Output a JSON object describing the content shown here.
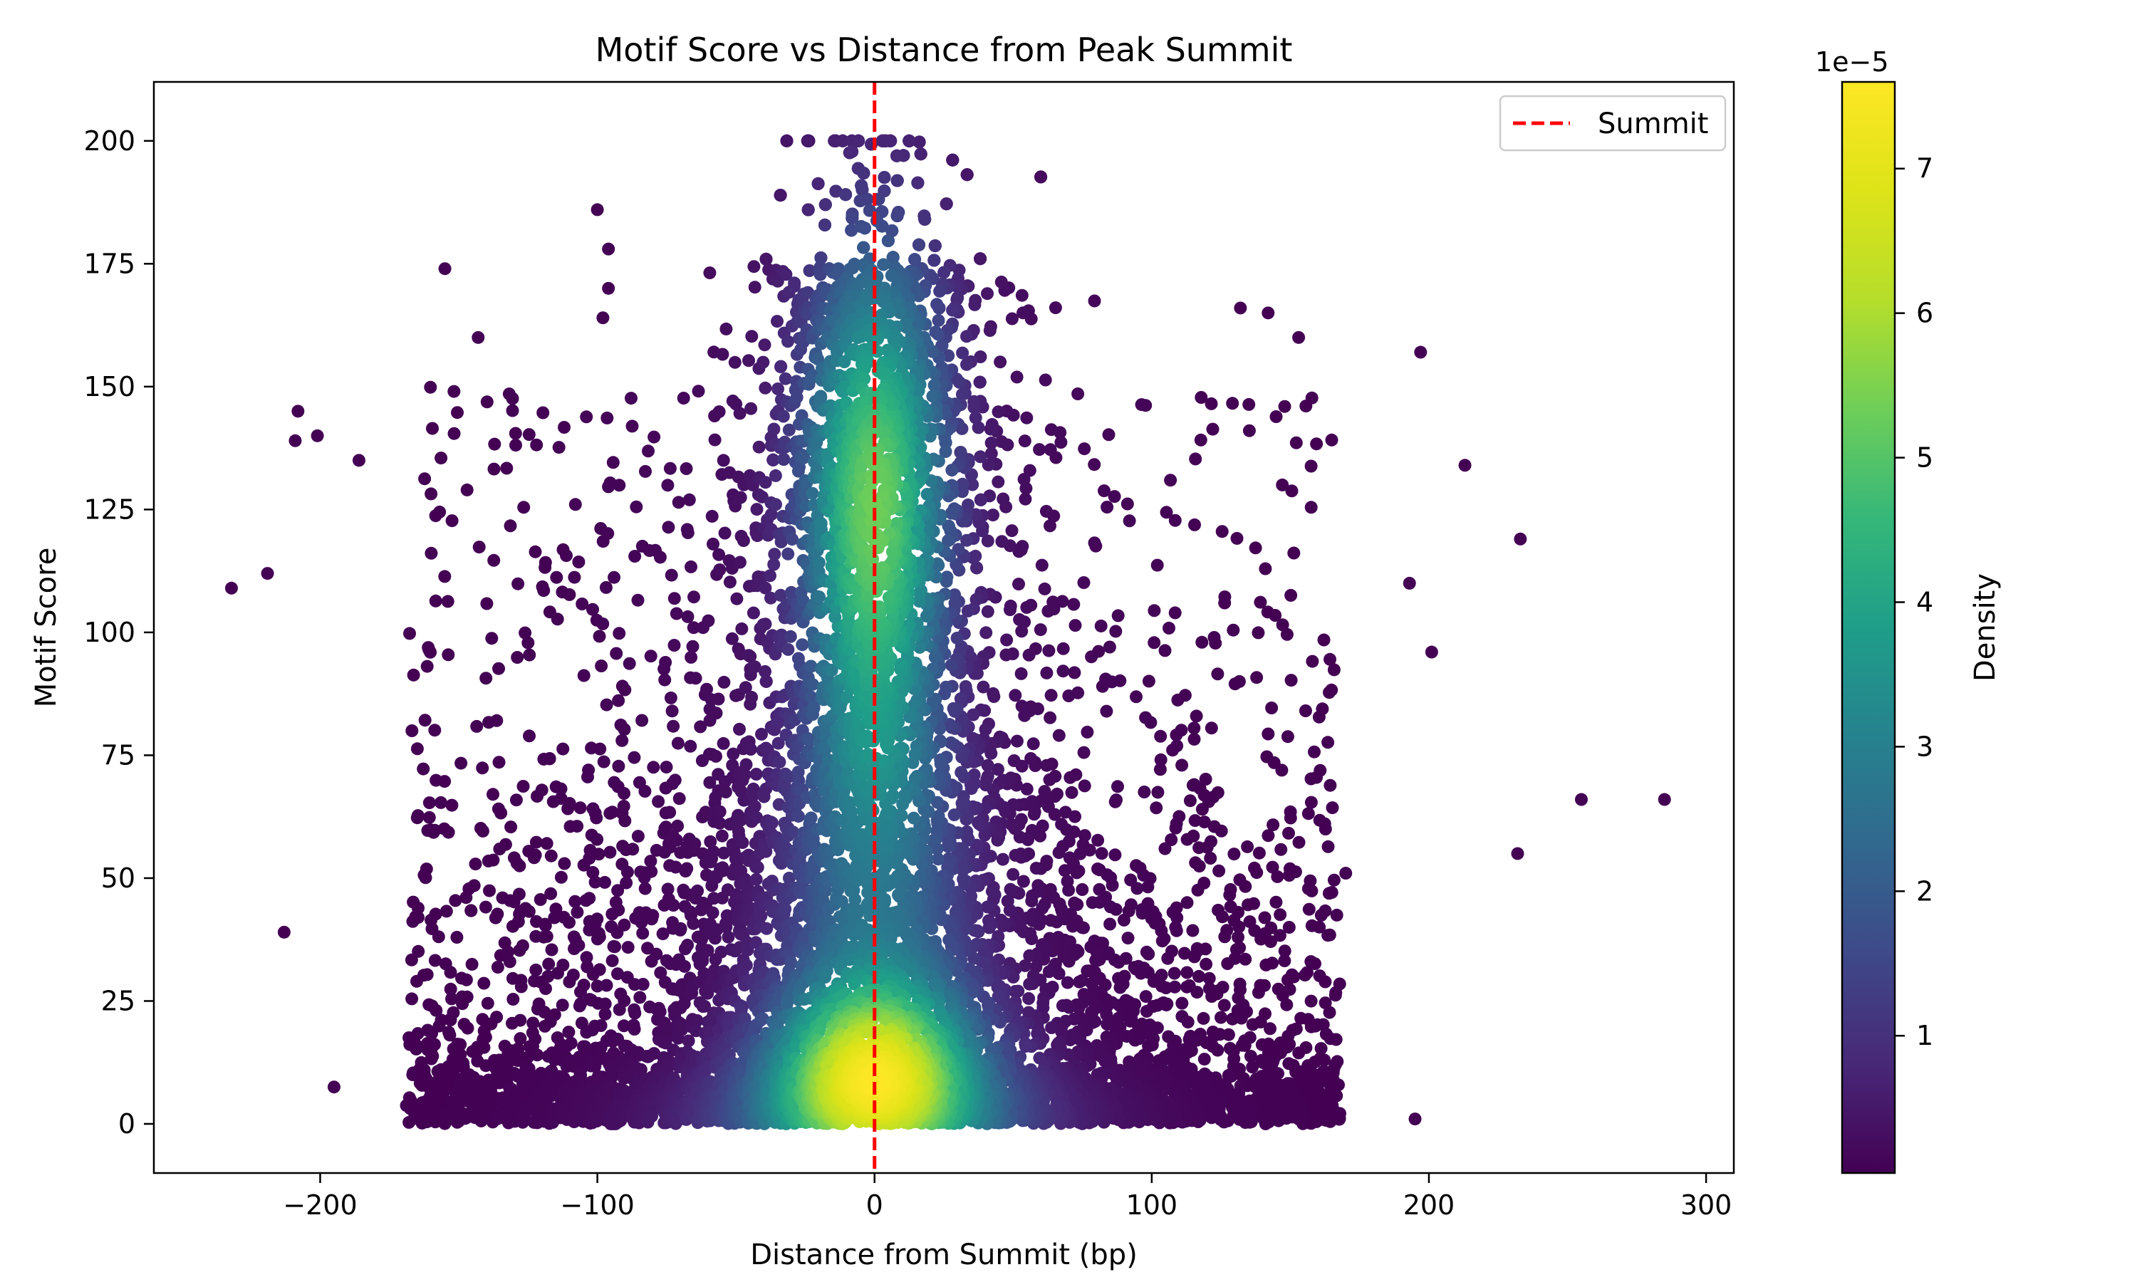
{
  "chart_data": {
    "type": "scatter",
    "title": "Motif Score vs Distance from Peak Summit",
    "xlabel": "Distance from Summit (bp)",
    "ylabel": "Motif Score",
    "xlim": [
      -260,
      310
    ],
    "ylim": [
      -10,
      212
    ],
    "xticks": [
      -200,
      -100,
      0,
      100,
      200,
      300
    ],
    "xtick_labels": [
      "−200",
      "−100",
      "0",
      "100",
      "200",
      "300"
    ],
    "yticks": [
      0,
      25,
      50,
      75,
      100,
      125,
      150,
      175,
      200
    ],
    "ytick_labels": [
      "0",
      "25",
      "50",
      "75",
      "100",
      "125",
      "150",
      "175",
      "200"
    ],
    "grid": false,
    "colormap": "viridis",
    "colorbar": {
      "label": "Density",
      "multiplier_label": "1e−5",
      "range": [
        0.05,
        7.6
      ],
      "ticks": [
        1,
        2,
        3,
        4,
        5,
        6,
        7
      ],
      "tick_labels": [
        "1",
        "2",
        "3",
        "4",
        "5",
        "6",
        "7"
      ]
    },
    "reference_line": {
      "x": 0,
      "label": "Summit",
      "color": "#ff0000",
      "style": "dashed"
    },
    "legend": {
      "placement": "top-right",
      "entries": [
        "Summit"
      ]
    },
    "distribution": {
      "description_core": "dense core centered at x≈0, strongest density near y≈130 and y≈10",
      "x_extent": [
        -168,
        168
      ],
      "y_extent": [
        0,
        200
      ]
    },
    "outliers": [
      {
        "x": -232,
        "y": 109
      },
      {
        "x": -219,
        "y": 112
      },
      {
        "x": -213,
        "y": 39
      },
      {
        "x": -208,
        "y": 145
      },
      {
        "x": -209,
        "y": 139
      },
      {
        "x": -201,
        "y": 140
      },
      {
        "x": -195,
        "y": 7.5
      },
      {
        "x": -186,
        "y": 135
      },
      {
        "x": -155,
        "y": 174
      },
      {
        "x": -143,
        "y": 160
      },
      {
        "x": -100,
        "y": 186
      },
      {
        "x": -96,
        "y": 178
      },
      {
        "x": -96,
        "y": 170
      },
      {
        "x": -98,
        "y": 164
      },
      {
        "x": 193,
        "y": 110
      },
      {
        "x": 195,
        "y": 1
      },
      {
        "x": 197,
        "y": 157
      },
      {
        "x": 201,
        "y": 96
      },
      {
        "x": 213,
        "y": 134
      },
      {
        "x": 232,
        "y": 55
      },
      {
        "x": 233,
        "y": 119
      },
      {
        "x": 255,
        "y": 66
      },
      {
        "x": 285,
        "y": 66
      },
      {
        "x": 170,
        "y": 51
      },
      {
        "x": 132,
        "y": 166
      },
      {
        "x": 153,
        "y": 160
      },
      {
        "x": 142,
        "y": 165
      }
    ]
  }
}
